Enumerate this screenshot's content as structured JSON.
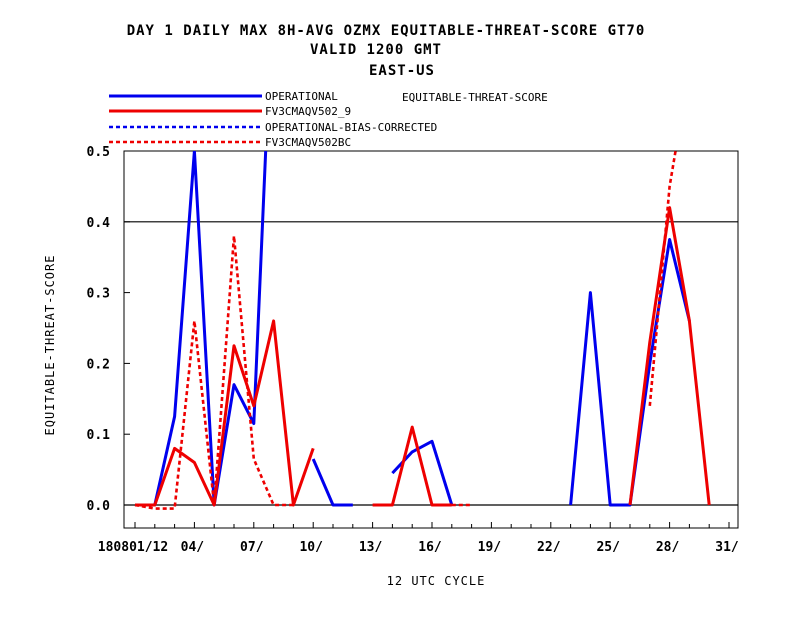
{
  "chart_data": {
    "type": "line",
    "title_lines": [
      "DAY 1 DAILY MAX   8H-AVG OZMX EQUITABLE-THREAT-SCORE GT70",
      "VALID 1200 GMT",
      "EAST-US"
    ],
    "legend_side_label": "EQUITABLE-THREAT-SCORE",
    "xlabel": "12 UTC CYCLE",
    "ylabel": "EQUITABLE-THREAT-SCORE",
    "xlim": [
      0,
      31
    ],
    "ylim": [
      -0.03,
      0.5
    ],
    "x_tick_labels": [
      {
        "x": 1,
        "label": "180801/12"
      },
      {
        "x": 4,
        "label": "04/"
      },
      {
        "x": 7,
        "label": "07/"
      },
      {
        "x": 10,
        "label": "10/"
      },
      {
        "x": 13,
        "label": "13/"
      },
      {
        "x": 16,
        "label": "16/"
      },
      {
        "x": 19,
        "label": "19/"
      },
      {
        "x": 22,
        "label": "22/"
      },
      {
        "x": 25,
        "label": "25/"
      },
      {
        "x": 28,
        "label": "28/"
      },
      {
        "x": 31,
        "label": "31/"
      }
    ],
    "y_ticks": [
      0.0,
      0.1,
      0.2,
      0.3,
      0.4,
      0.5
    ],
    "y_tick_labels": [
      "0.0",
      "0.1",
      "0.2",
      "0.3",
      "0.4",
      "0.5"
    ],
    "reference_lines": [
      0.0,
      0.4
    ],
    "series": [
      {
        "name": "OPERATIONAL",
        "color": "#0000ee",
        "dashed": false,
        "segments": [
          [
            [
              1,
              0.0
            ],
            [
              2,
              0.0
            ],
            [
              3,
              0.125
            ],
            [
              4,
              0.5
            ],
            [
              5,
              0.0
            ],
            [
              6,
              0.17
            ],
            [
              7,
              0.115
            ],
            [
              7.6,
              0.5
            ]
          ],
          [
            [
              10,
              0.065
            ],
            [
              11,
              0.0
            ],
            [
              12,
              0.0
            ]
          ],
          [
            [
              14,
              0.045
            ],
            [
              15,
              0.075
            ],
            [
              16,
              0.09
            ],
            [
              17,
              0.0
            ]
          ],
          [
            [
              23,
              0.0
            ],
            [
              24,
              0.3
            ],
            [
              25,
              0.0
            ],
            [
              26,
              0.0
            ],
            [
              27,
              0.2
            ],
            [
              28,
              0.375
            ],
            [
              29,
              0.26
            ]
          ]
        ]
      },
      {
        "name": "FV3CMAQV502_9",
        "color": "#ee0000",
        "dashed": false,
        "segments": [
          [
            [
              1,
              0.0
            ],
            [
              2,
              0.0
            ],
            [
              3,
              0.08
            ],
            [
              4,
              0.06
            ],
            [
              5,
              0.0
            ],
            [
              6,
              0.225
            ],
            [
              7,
              0.14
            ],
            [
              8,
              0.26
            ],
            [
              9,
              0.0
            ],
            [
              10,
              0.08
            ]
          ],
          [
            [
              13,
              0.0
            ],
            [
              14,
              0.0
            ],
            [
              15,
              0.11
            ],
            [
              16,
              0.0
            ],
            [
              17,
              0.0
            ]
          ],
          [
            [
              26,
              0.0
            ],
            [
              27,
              0.23
            ],
            [
              28,
              0.42
            ],
            [
              29,
              0.26
            ],
            [
              30,
              0.0
            ]
          ]
        ]
      },
      {
        "name": "OPERATIONAL-BIAS-CORRECTED",
        "color": "#0000ee",
        "dashed": true,
        "segments": []
      },
      {
        "name": "FV3CMAQV502BC",
        "color": "#ee0000",
        "dashed": true,
        "segments": [
          [
            [
              1,
              0.0
            ],
            [
              2,
              -0.005
            ],
            [
              3,
              -0.005
            ],
            [
              4,
              0.26
            ],
            [
              5,
              0.0
            ],
            [
              6,
              0.38
            ],
            [
              7,
              0.065
            ],
            [
              8,
              0.0
            ],
            [
              9,
              0.0
            ]
          ],
          [
            [
              17,
              0.0
            ],
            [
              18,
              0.0
            ]
          ],
          [
            [
              27,
              0.14
            ],
            [
              28,
              0.45
            ],
            [
              28.3,
              0.5
            ]
          ]
        ]
      }
    ]
  }
}
